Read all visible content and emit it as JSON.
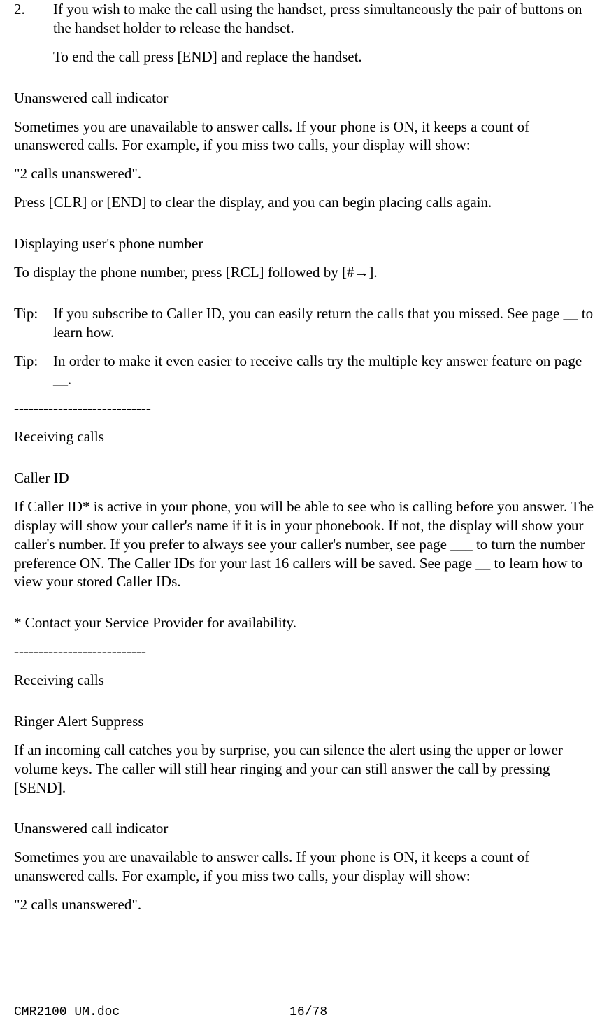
{
  "step2": {
    "num": "2.",
    "text": "If you wish to make the call using the handset, press simultaneously the pair of buttons on the handset holder to release the handset.",
    "cont": "To end the call press [END] and replace the handset."
  },
  "unans1": {
    "heading": "Unanswered call indicator",
    "p1": "Sometimes you are unavailable to answer calls. If your phone is ON, it keeps a count of unanswered calls. For example, if you miss two calls, your display will show:",
    "p2": "\"2 calls unanswered\".",
    "p3": "Press [CLR] or [END] to clear the display, and you can begin placing calls again."
  },
  "disp": {
    "heading": "Displaying user's phone number",
    "p1": "To display the phone number, press [RCL] followed by [#→]."
  },
  "tips": {
    "label": "Tip:",
    "t1": "If you subscribe to Caller ID, you can easily return the calls that  you missed. See page __ to learn how.",
    "t2": "In order to make it even easier to receive calls try the multiple key answer feature on page __."
  },
  "sep1": "----------------------------",
  "recv1": "Receiving calls",
  "cid": {
    "heading": "Caller ID",
    "p1": "If Caller ID* is active in your phone, you will be able to see who is calling before you answer. The display will show your caller's name if it is in your phonebook. If not, the display will show your caller's number. If you prefer to always see your caller's number, see page ___ to turn the number preference ON. The Caller IDs for your last 16 callers will be saved. See page __ to learn how to view your stored Caller IDs.",
    "note": "* Contact your Service Provider for availability."
  },
  "sep2": "---------------------------",
  "recv2": "Receiving calls",
  "ras": {
    "heading": "Ringer Alert Suppress",
    "p1": "If an incoming call catches you by surprise, you can silence the alert using the upper or lower volume keys. The caller will still hear ringing and your can still answer the call by pressing [SEND]."
  },
  "unans2": {
    "heading": "Unanswered call indicator",
    "p1": "Sometimes you are unavailable to answer calls. If your phone is ON, it keeps a count of unanswered calls. For example, if you miss two calls, your display will show:",
    "p2": "\"2 calls unanswered\"."
  },
  "footer": {
    "doc": "CMR2100 UM.doc",
    "page": "16/78"
  }
}
